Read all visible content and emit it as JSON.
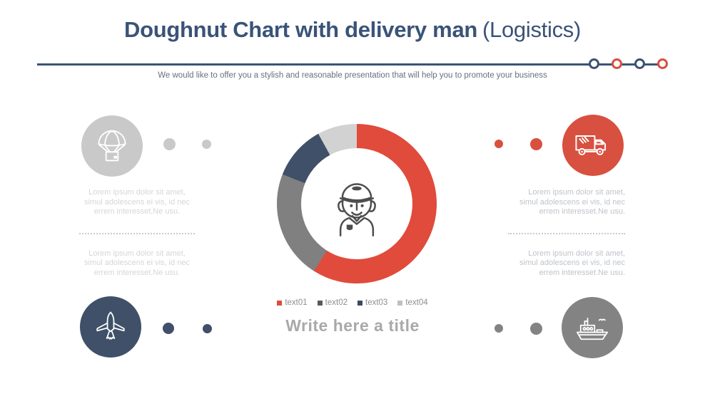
{
  "slide": {
    "title_bold": "Doughnut Chart with delivery man",
    "title_light": "(Logistics)",
    "subtitle": "We would like to offer you a stylish and reasonable presentation that will help you to promote your business",
    "title_color": "#3a5378",
    "subtitle_color": "#667080"
  },
  "divider": {
    "line_color": "#3a5375",
    "ring_colors": [
      "#3a5375",
      "#d8503f",
      "#3a5375",
      "#d8503f"
    ]
  },
  "chart_data": {
    "type": "pie",
    "subtype": "doughnut",
    "labels": [
      "text01",
      "text02",
      "text03",
      "text04"
    ],
    "values": [
      59,
      22,
      11,
      8
    ],
    "colors": [
      "#e04b3b",
      "#808080",
      "#3f5068",
      "#d2d2d2"
    ],
    "legend_markers": [
      "#e04b3b",
      "#595959",
      "#3a4a61",
      "#bfbfbf"
    ],
    "start_angle_deg": 0,
    "direction": "clockwise",
    "legend_position": "bottom-center",
    "center_icon": "delivery-man",
    "title": "Write here a title",
    "title_color": "#a9a9a9"
  },
  "left_column": {
    "top_icon": "parachute-delivery-icon",
    "top_color": "#c9c9c9",
    "bottom_icon": "airplane-icon",
    "bottom_color": "#3f5068",
    "text_block_1": "Lorem ipsum dolor sit amet, simul adolescens ei vis, id nec errem interesset.Ne usu.",
    "text_block_2": "Lorem ipsum dolor sit amet, simul adolescens ei vis, id nec errem interesset.Ne usu."
  },
  "right_column": {
    "top_icon": "truck-icon",
    "top_color": "#d8503f",
    "bottom_icon": "ship-icon",
    "bottom_color": "#838383",
    "text_block_1": "Lorem ipsum dolor sit amet, simul adolescens ei vis, id nec errem interesset.Ne usu.",
    "text_block_2": "Lorem ipsum dolor sit amet, simul adolescens ei vis, id nec errem interesset.Ne usu."
  }
}
